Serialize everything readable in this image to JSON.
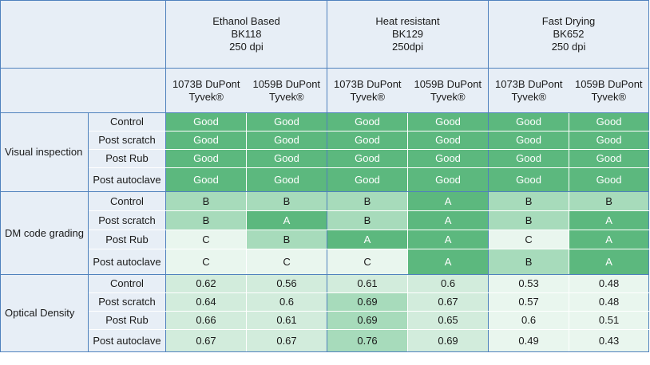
{
  "groups": [
    {
      "line1": "Ethanol Based",
      "line2": "BK118",
      "line3": "250 dpi"
    },
    {
      "line1": "Heat resistant",
      "line2": "BK129",
      "line3": "250dpi"
    },
    {
      "line1": "Fast Drying",
      "line2": "BK652",
      "line3": "250 dpi"
    }
  ],
  "materials": [
    {
      "line1": "1073B DuPont",
      "line2": "Tyvek®"
    },
    {
      "line1": "1059B DuPont",
      "line2": "Tyvek®"
    },
    {
      "line1": "1073B DuPont",
      "line2": "Tyvek®"
    },
    {
      "line1": "1059B DuPont",
      "line2": "Tyvek®"
    },
    {
      "line1": "1073B DuPont",
      "line2": "Tyvek®"
    },
    {
      "line1": "1059B DuPont",
      "line2": "Tyvek®"
    }
  ],
  "sections": [
    {
      "label": "Visual inspection",
      "rows": [
        {
          "condition": "Control",
          "values": [
            "Good",
            "Good",
            "Good",
            "Good",
            "Good",
            "Good"
          ]
        },
        {
          "condition": "Post scratch",
          "values": [
            "Good",
            "Good",
            "Good",
            "Good",
            "Good",
            "Good"
          ]
        },
        {
          "condition": "Post Rub",
          "values": [
            "Good",
            "Good",
            "Good",
            "Good",
            "Good",
            "Good"
          ]
        },
        {
          "condition": "Post autoclave",
          "values": [
            "Good",
            "Good",
            "Good",
            "Good",
            "Good",
            "Good"
          ]
        }
      ]
    },
    {
      "label": "DM code grading",
      "rows": [
        {
          "condition": "Control",
          "values": [
            "B",
            "B",
            "B",
            "A",
            "B",
            "B"
          ]
        },
        {
          "condition": "Post scratch",
          "values": [
            "B",
            "A",
            "B",
            "A",
            "B",
            "A"
          ]
        },
        {
          "condition": "Post Rub",
          "values": [
            "C",
            "B",
            "A",
            "A",
            "C",
            "A"
          ]
        },
        {
          "condition": "Post autoclave",
          "values": [
            "C",
            "C",
            "C",
            "A",
            "B",
            "A"
          ]
        }
      ]
    },
    {
      "label": "Optical Density",
      "rows": [
        {
          "condition": "Control",
          "values": [
            "0.62",
            "0.56",
            "0.61",
            "0.6",
            "0.53",
            "0.48"
          ]
        },
        {
          "condition": "Post scratch",
          "values": [
            "0.64",
            "0.6",
            "0.69",
            "0.67",
            "0.57",
            "0.48"
          ]
        },
        {
          "condition": "Post Rub",
          "values": [
            "0.66",
            "0.61",
            "0.69",
            "0.65",
            "0.6",
            "0.51"
          ]
        },
        {
          "condition": "Post autoclave",
          "values": [
            "0.67",
            "0.67",
            "0.76",
            "0.69",
            "0.49",
            "0.43"
          ]
        }
      ]
    }
  ],
  "colors": {
    "header_bg": "#e7eef6",
    "border": "#4f81bd",
    "good_dark": "#5cb87e",
    "medium": "#a7dbbb",
    "light": "#d2ecdc",
    "pale": "#e9f6ee"
  }
}
